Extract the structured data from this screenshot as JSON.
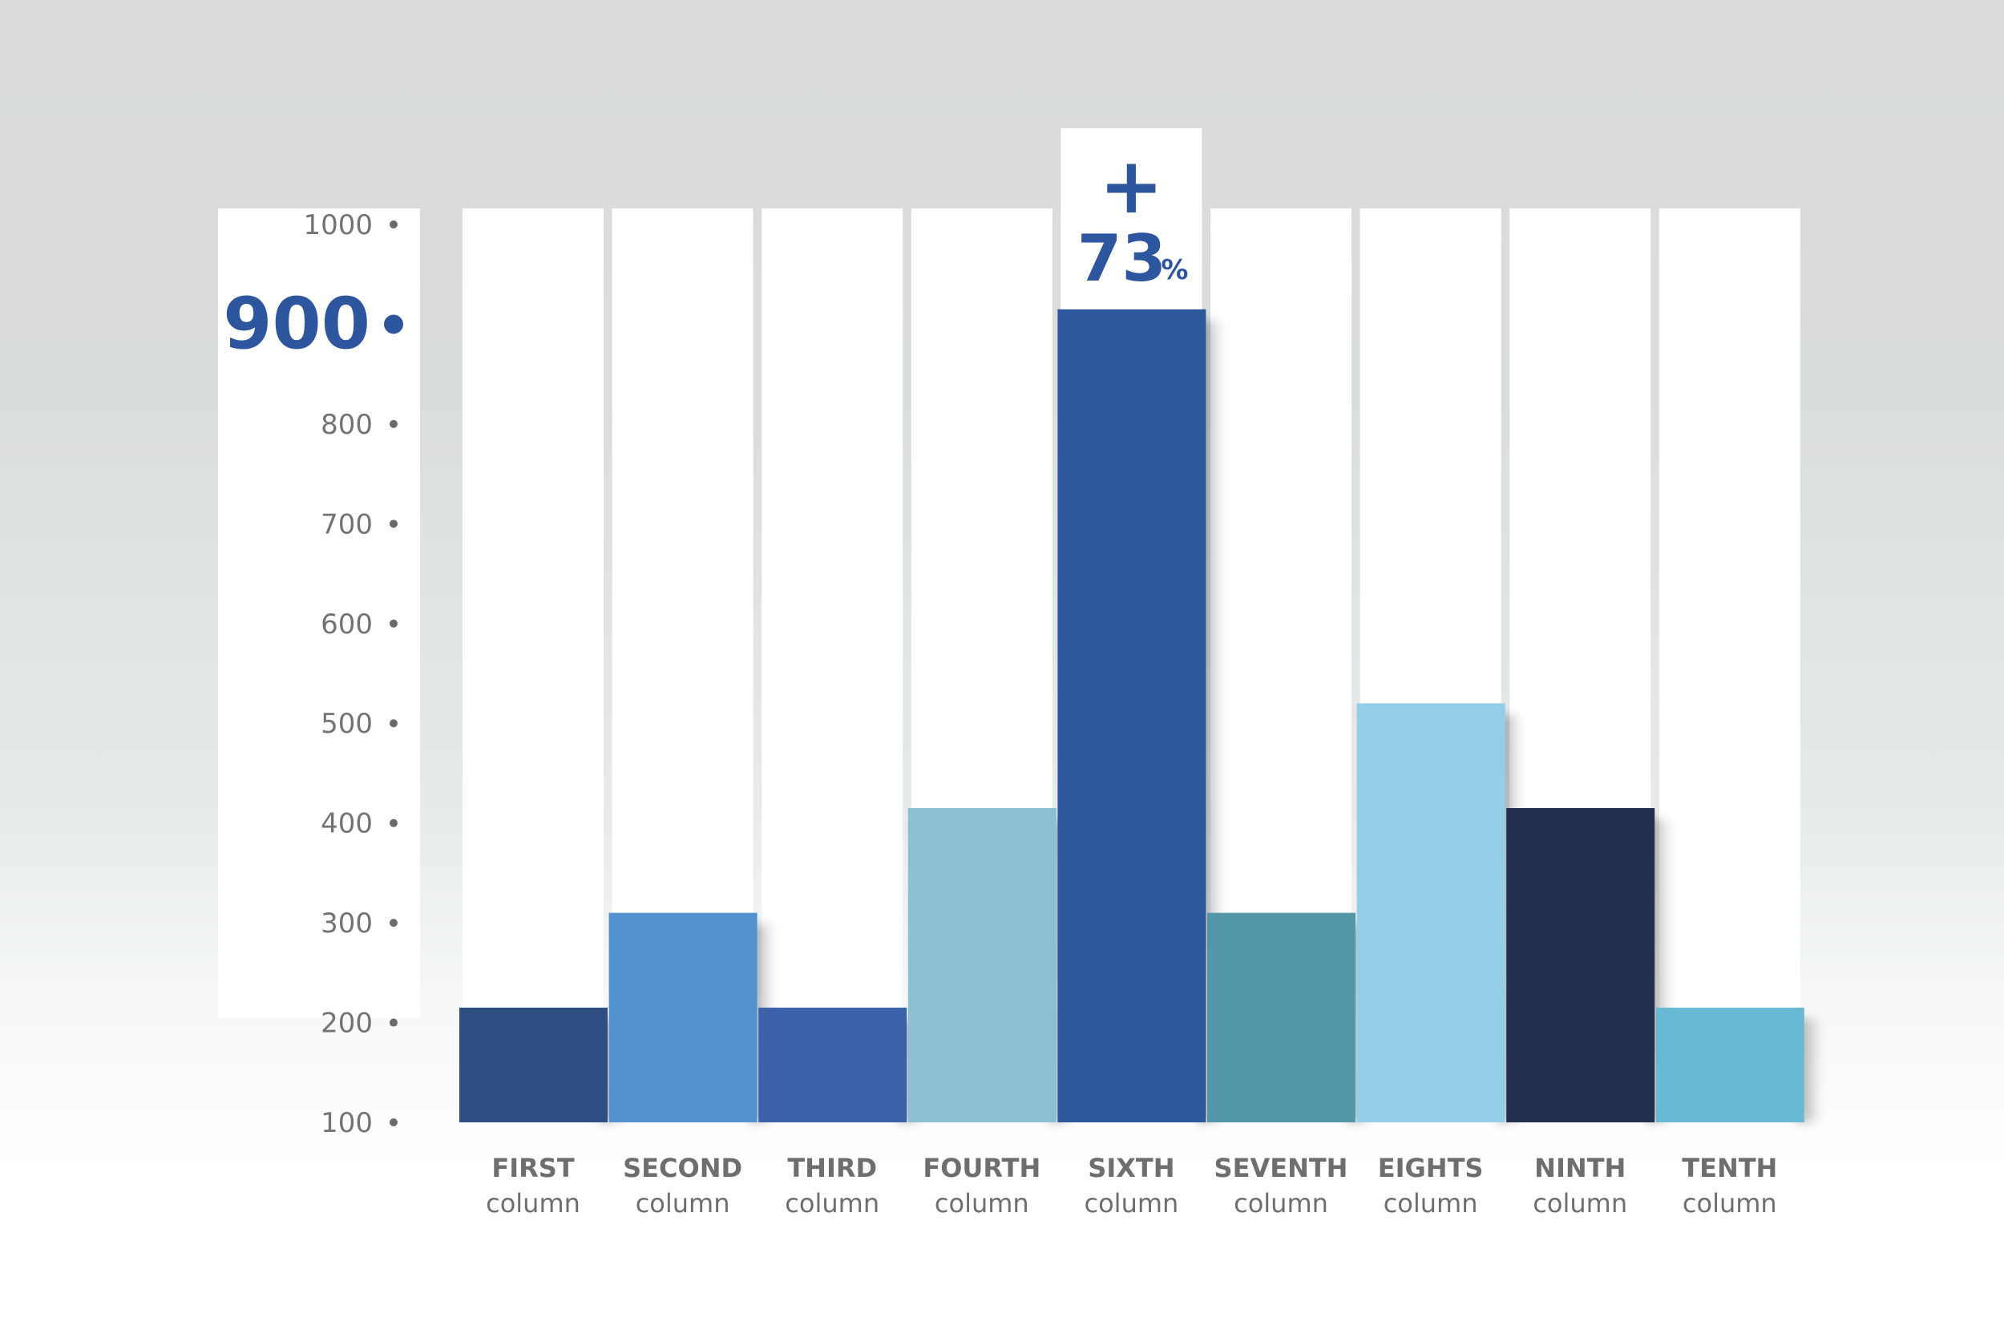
{
  "chart_data": {
    "type": "bar",
    "title": "",
    "xlabel": "",
    "ylabel": "",
    "ylim": [
      100,
      1000
    ],
    "ticks": [
      "1000",
      "900",
      "800",
      "700",
      "600",
      "500",
      "400",
      "300",
      "200",
      "100"
    ],
    "highlight_tick": "900",
    "categories": [
      {
        "main": "FIRST",
        "sub": "column"
      },
      {
        "main": "SECOND",
        "sub": "column"
      },
      {
        "main": "THIRD",
        "sub": "column"
      },
      {
        "main": "FOURTH",
        "sub": "column"
      },
      {
        "main": "SIXTH",
        "sub": "column"
      },
      {
        "main": "SEVENTH",
        "sub": "column"
      },
      {
        "main": "EIGHTS",
        "sub": "column"
      },
      {
        "main": "NINTH",
        "sub": "column"
      },
      {
        "main": "TENTH",
        "sub": "column"
      }
    ],
    "values": [
      215,
      310,
      215,
      415,
      915,
      310,
      520,
      415,
      215
    ],
    "colors": [
      "#2d4f82",
      "#5192cf",
      "#3c62aa",
      "#8bc0d4",
      "#2f579b",
      "#5497a8",
      "#94cde8",
      "#232f51",
      "#68b8d6"
    ],
    "highlight": {
      "index": 4,
      "sign": "+",
      "value": "73",
      "unit": "%"
    }
  }
}
